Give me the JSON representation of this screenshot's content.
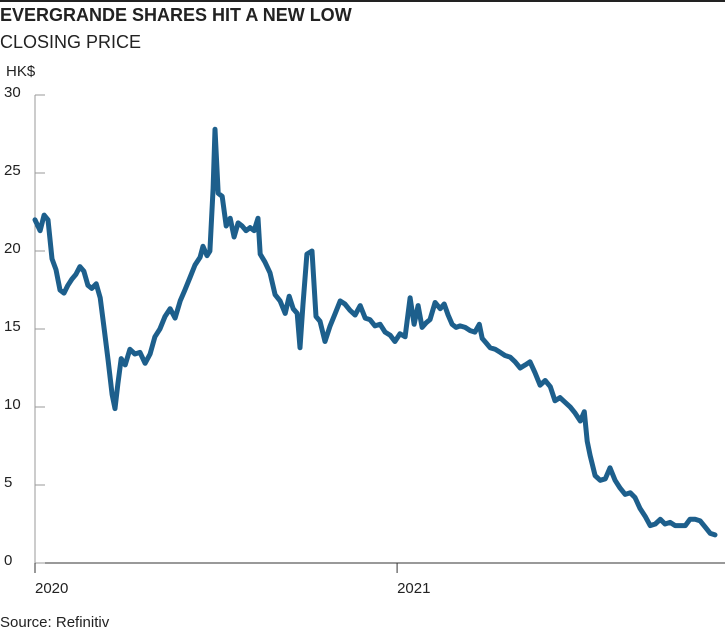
{
  "chart_data": {
    "type": "line",
    "title": "EVERGRANDE SHARES HIT A NEW LOW",
    "subtitle": "CLOSING PRICE",
    "y_label": "HK$",
    "source": "Source: Refinitiv",
    "color": "#1d5f8c",
    "xlim": [
      2020,
      2021.878
    ],
    "xticks": [
      2020,
      2021
    ],
    "ylim": [
      0,
      30
    ],
    "yticks": [
      0,
      5,
      10,
      15,
      20,
      25,
      30
    ],
    "x": [
      2020.0,
      2020.014,
      2020.025,
      2020.036,
      2020.047,
      2020.058,
      2020.069,
      2020.08,
      2020.091,
      2020.102,
      2020.113,
      2020.124,
      2020.135,
      2020.146,
      2020.157,
      2020.169,
      2020.18,
      2020.191,
      2020.202,
      2020.213,
      2020.221,
      2020.229,
      2020.238,
      2020.249,
      2020.262,
      2020.276,
      2020.29,
      2020.304,
      2020.318,
      2020.331,
      2020.345,
      2020.359,
      2020.373,
      2020.387,
      2020.401,
      2020.414,
      2020.428,
      2020.442,
      2020.456,
      2020.464,
      2020.475,
      2020.483,
      2020.492,
      2020.497,
      2020.506,
      2020.517,
      2020.528,
      2020.539,
      2020.55,
      2020.561,
      2020.572,
      2020.583,
      2020.594,
      2020.605,
      2020.616,
      2020.622,
      2020.635,
      2020.649,
      2020.663,
      2020.677,
      2020.691,
      2020.702,
      2020.713,
      2020.724,
      2020.732,
      2020.74,
      2020.751,
      2020.765,
      2020.776,
      2020.787,
      2020.801,
      2020.815,
      2020.829,
      2020.843,
      2020.856,
      2020.87,
      2020.884,
      2020.898,
      2020.912,
      2020.925,
      2020.939,
      2020.953,
      2020.967,
      2020.981,
      2020.994,
      2021.008,
      2021.022,
      2021.036,
      2021.047,
      2021.058,
      2021.069,
      2021.08,
      2021.091,
      2021.105,
      2021.119,
      2021.13,
      2021.141,
      2021.152,
      2021.163,
      2021.174,
      2021.188,
      2021.202,
      2021.215,
      2021.227,
      2021.235,
      2021.246,
      2021.257,
      2021.271,
      2021.285,
      2021.298,
      2021.312,
      2021.326,
      2021.34,
      2021.354,
      2021.367,
      2021.381,
      2021.395,
      2021.409,
      2021.423,
      2021.436,
      2021.45,
      2021.464,
      2021.478,
      2021.492,
      2021.506,
      2021.517,
      2021.525,
      2021.533,
      2021.547,
      2021.561,
      2021.575,
      2021.588,
      2021.602,
      2021.616,
      2021.63,
      2021.644,
      2021.657,
      2021.671,
      2021.685,
      2021.699,
      2021.713,
      2021.727,
      2021.74,
      2021.754,
      2021.768,
      2021.782,
      2021.796,
      2021.809,
      2021.823,
      2021.837,
      2021.851,
      2021.865,
      2021.878
    ],
    "values": [
      22.0,
      21.3,
      22.3,
      22.0,
      19.5,
      18.8,
      17.5,
      17.3,
      17.8,
      18.2,
      18.5,
      19.0,
      18.7,
      17.8,
      17.6,
      17.9,
      17.0,
      15.0,
      13.0,
      10.8,
      9.9,
      11.5,
      13.1,
      12.7,
      13.7,
      13.4,
      13.5,
      12.8,
      13.4,
      14.5,
      15.0,
      15.8,
      16.3,
      15.7,
      16.8,
      17.5,
      18.3,
      19.1,
      19.6,
      20.3,
      19.7,
      20.0,
      24.0,
      27.8,
      23.7,
      23.5,
      21.6,
      22.1,
      20.9,
      21.8,
      21.6,
      21.3,
      21.5,
      21.3,
      22.1,
      19.8,
      19.3,
      18.6,
      17.2,
      16.8,
      16.0,
      17.1,
      16.3,
      16.0,
      13.8,
      16.5,
      19.8,
      20.0,
      15.8,
      15.5,
      14.2,
      15.2,
      16.0,
      16.8,
      16.6,
      16.2,
      15.9,
      16.5,
      15.7,
      15.6,
      15.2,
      15.3,
      14.8,
      14.6,
      14.2,
      14.7,
      14.5,
      17.0,
      15.3,
      16.5,
      15.1,
      15.4,
      15.6,
      16.7,
      16.3,
      16.6,
      15.9,
      15.3,
      15.1,
      15.2,
      15.1,
      14.9,
      14.8,
      15.3,
      14.4,
      14.1,
      13.8,
      13.7,
      13.5,
      13.3,
      13.2,
      12.9,
      12.5,
      12.7,
      12.9,
      12.2,
      11.4,
      11.7,
      11.3,
      10.4,
      10.6,
      10.3,
      10.0,
      9.6,
      9.1,
      9.7,
      7.8,
      6.9,
      5.6,
      5.3,
      5.4,
      6.1,
      5.3,
      4.8,
      4.4,
      4.5,
      4.2,
      3.5,
      3.0,
      2.4,
      2.5,
      2.8,
      2.5,
      2.6,
      2.4,
      2.4,
      2.4,
      2.8,
      2.8,
      2.7,
      2.3,
      1.9,
      1.8
    ]
  }
}
